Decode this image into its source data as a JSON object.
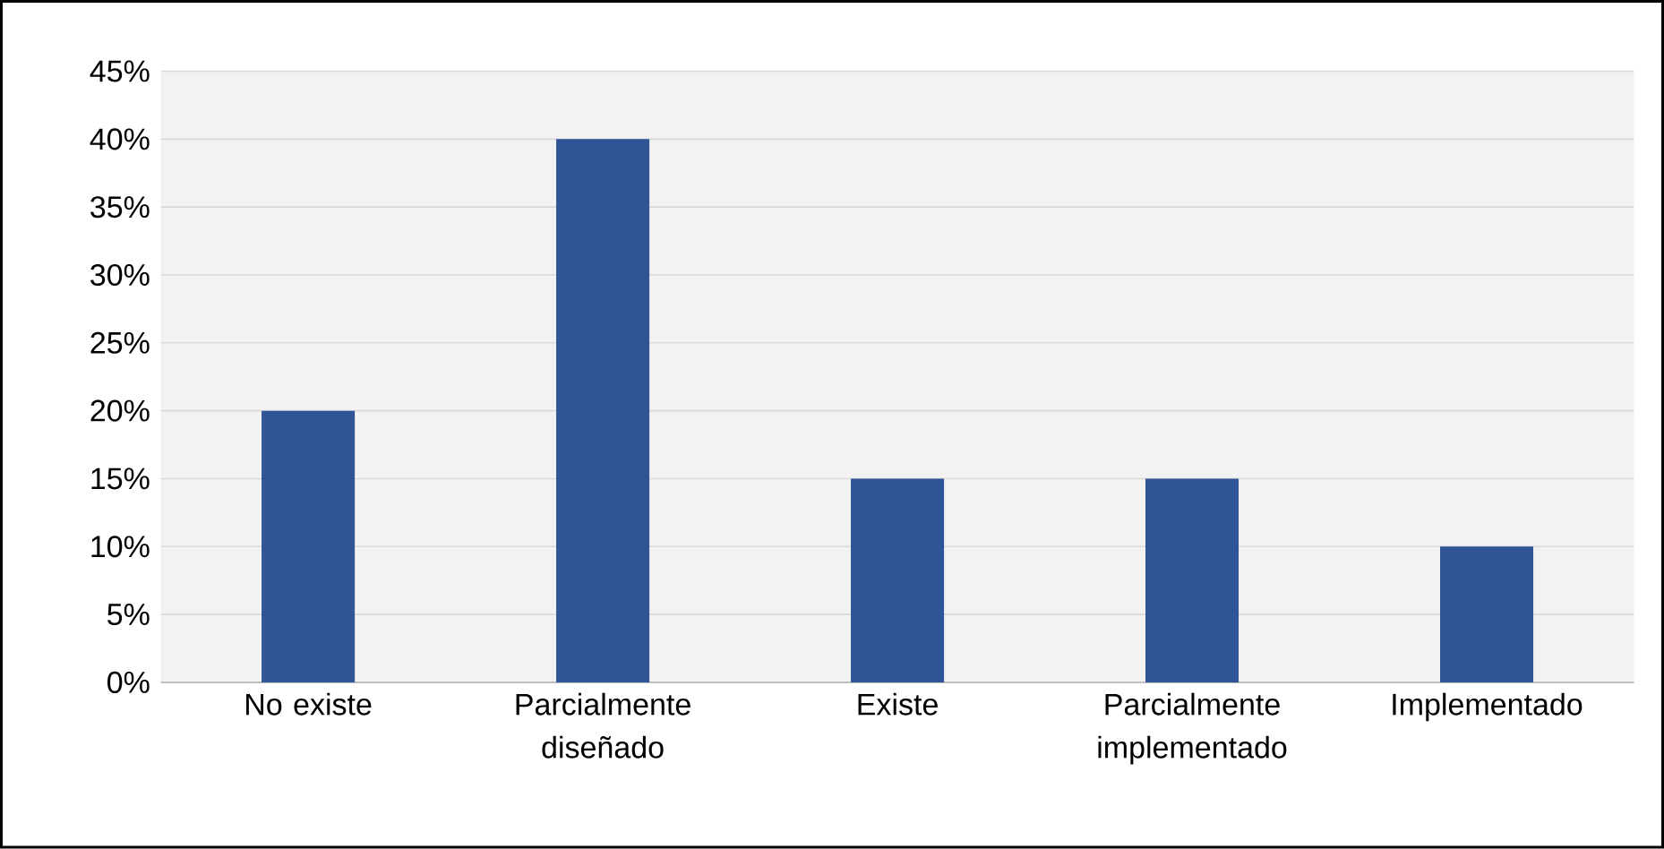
{
  "chart_data": {
    "type": "bar",
    "categories": [
      "No existe",
      "Parcialmente diseñado",
      "Existe",
      "Parcialmente implementado",
      "Implementado"
    ],
    "values": [
      20,
      40,
      15,
      15,
      10
    ],
    "color": "#2f5597",
    "ylim": [
      0,
      45
    ],
    "yticks": [
      {
        "value": 0,
        "label": "0%"
      },
      {
        "value": 5,
        "label": "5%"
      },
      {
        "value": 10,
        "label": "10%"
      },
      {
        "value": 15,
        "label": "15%"
      },
      {
        "value": 20,
        "label": "20%"
      },
      {
        "value": 25,
        "label": "25%"
      },
      {
        "value": 30,
        "label": "30%"
      },
      {
        "value": 35,
        "label": "35%"
      },
      {
        "value": 40,
        "label": "40%"
      },
      {
        "value": 45,
        "label": "45%"
      }
    ],
    "grid": "y"
  }
}
